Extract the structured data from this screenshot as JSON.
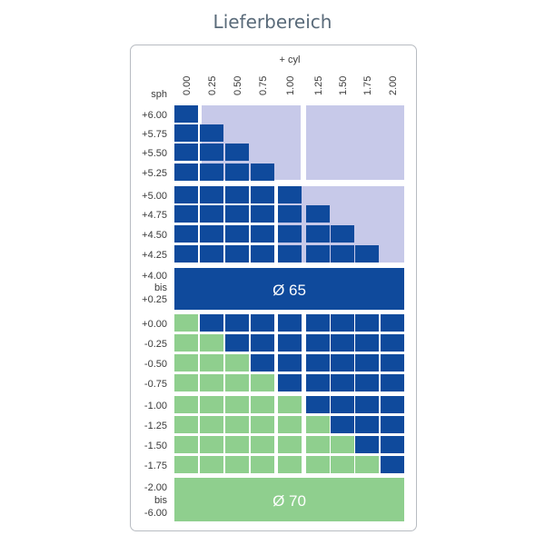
{
  "title": "Lieferbereich",
  "cyl_header": "+ cyl",
  "sph_header": "sph",
  "cyl_values": [
    "0.00",
    "0.25",
    "0.50",
    "0.75",
    "1.00",
    "1.25",
    "1.50",
    "1.75",
    "2.00"
  ],
  "sph_upper": [
    "+6.00",
    "+5.75",
    "+5.50",
    "+5.25",
    "+5.00",
    "+4.75",
    "+4.50",
    "+4.25"
  ],
  "sph_lower": [
    "+0.00",
    "-0.25",
    "-0.50",
    "-0.75",
    "-1.00",
    "-1.25",
    "-1.50",
    "-1.75"
  ],
  "band65": {
    "label_lines": [
      "+4.00",
      "bis",
      "+0.25"
    ],
    "text": "Ø 65"
  },
  "band70": {
    "label_lines": [
      "-2.00",
      "bis",
      "-6.00"
    ],
    "text": "Ø 70"
  },
  "colors": {
    "dark_blue": "#0f4a9c",
    "light_lavender": "#c7c9e9",
    "green": "#8fcf8e",
    "frame": "#b8bcc2"
  },
  "upper_available_count": [
    1,
    2,
    3,
    4,
    5,
    6,
    7,
    8
  ],
  "lower_green_count": [
    1,
    2,
    3,
    4,
    5,
    6,
    7,
    8
  ]
}
